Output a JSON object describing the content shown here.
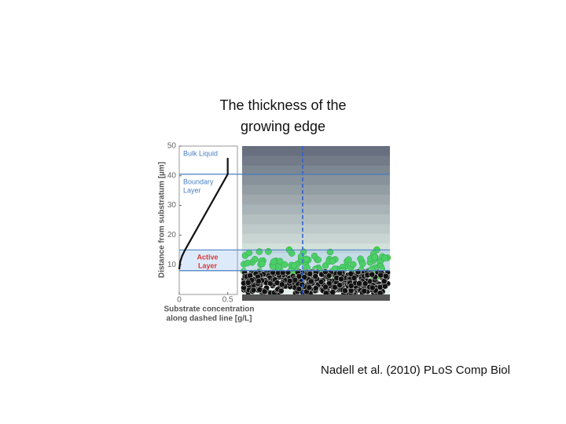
{
  "title_lines": [
    "The thickness of the",
    "growing edge"
  ],
  "citation": "Nadell et al. (2010) PLoS Comp Biol",
  "chart_data": {
    "type": "line",
    "y_label": "Distance from substratum [µm]",
    "x_label_lines": [
      "Substrate concentration",
      "along dashed line [g/L]"
    ],
    "x": [
      0,
      0.01,
      0.03,
      0.06,
      0.5,
      0.5
    ],
    "values": [
      8.5,
      11,
      13,
      15,
      40.5,
      46
    ],
    "color": "#111111",
    "xlim": [
      0,
      0.6
    ],
    "xticks": [
      0,
      0.5
    ],
    "ylim": [
      0,
      50
    ],
    "yticks": [
      10,
      20,
      30,
      40,
      50
    ],
    "regions": [
      {
        "label_lines": [
          "Bulk Liquid"
        ],
        "range": [
          40.5,
          50
        ],
        "color": "#4a7fc1"
      },
      {
        "label_lines": [
          "Boundary",
          "Layer"
        ],
        "range": [
          15,
          40.5
        ],
        "color": "#4a7fc1"
      },
      {
        "label_lines": [
          "Active",
          "Layer"
        ],
        "range": [
          8,
          15
        ],
        "color": "#d83a3a"
      }
    ]
  }
}
